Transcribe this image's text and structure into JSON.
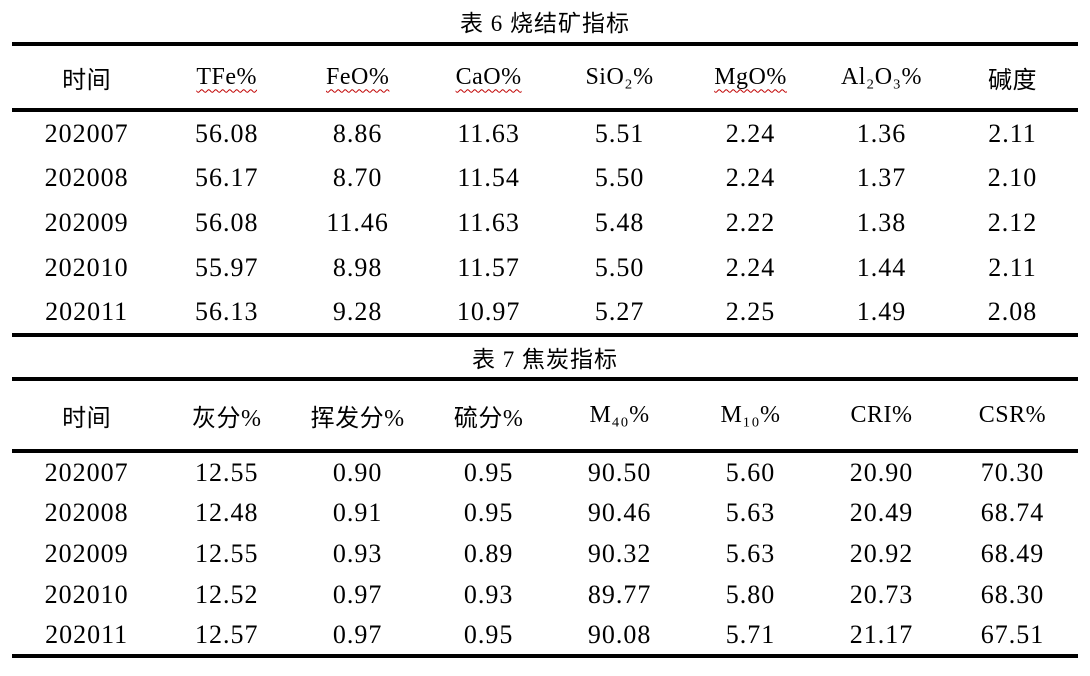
{
  "page": {
    "background_color": "#ffffff",
    "text_color": "#000000",
    "spellcheck_underline_color": "#c00000"
  },
  "tables": [
    {
      "title": "表 6 烧结矿指标",
      "columns": [
        {
          "label": "时间",
          "wavy": false
        },
        {
          "label": "TFe%",
          "wavy": true
        },
        {
          "label": "FeO%",
          "wavy": true
        },
        {
          "label": "CaO%",
          "wavy": true
        },
        {
          "label": "SiO₂%",
          "wavy": false
        },
        {
          "label": "MgO%",
          "wavy": true
        },
        {
          "label": "Al₂O₃%",
          "wavy": false
        },
        {
          "label": "碱度",
          "wavy": false
        }
      ],
      "rows": [
        [
          "202007",
          "56.08",
          "8.86",
          "11.63",
          "5.51",
          "2.24",
          "1.36",
          "2.11"
        ],
        [
          "202008",
          "56.17",
          "8.70",
          "11.54",
          "5.50",
          "2.24",
          "1.37",
          "2.10"
        ],
        [
          "202009",
          "56.08",
          "11.46",
          "11.63",
          "5.48",
          "2.22",
          "1.38",
          "2.12"
        ],
        [
          "202010",
          "55.97",
          "8.98",
          "11.57",
          "5.50",
          "2.24",
          "1.44",
          "2.11"
        ],
        [
          "202011",
          "56.13",
          "9.28",
          "10.97",
          "5.27",
          "2.25",
          "1.49",
          "2.08"
        ]
      ]
    },
    {
      "title": "表 7 焦炭指标",
      "columns": [
        {
          "label": "时间",
          "wavy": false
        },
        {
          "label": "灰分%",
          "wavy": false
        },
        {
          "label": "挥发分%",
          "wavy": false
        },
        {
          "label": "硫分%",
          "wavy": false
        },
        {
          "label": "M₄₀%",
          "wavy": false
        },
        {
          "label": "M₁₀%",
          "wavy": false
        },
        {
          "label": "CRI%",
          "wavy": false
        },
        {
          "label": "CSR%",
          "wavy": false
        }
      ],
      "rows": [
        [
          "202007",
          "12.55",
          "0.90",
          "0.95",
          "90.50",
          "5.60",
          "20.90",
          "70.30"
        ],
        [
          "202008",
          "12.48",
          "0.91",
          "0.95",
          "90.46",
          "5.63",
          "20.49",
          "68.74"
        ],
        [
          "202009",
          "12.55",
          "0.93",
          "0.89",
          "90.32",
          "5.63",
          "20.92",
          "68.49"
        ],
        [
          "202010",
          "12.52",
          "0.97",
          "0.93",
          "89.77",
          "5.80",
          "20.73",
          "68.30"
        ],
        [
          "202011",
          "12.57",
          "0.97",
          "0.95",
          "90.08",
          "5.71",
          "21.17",
          "67.51"
        ]
      ]
    }
  ]
}
